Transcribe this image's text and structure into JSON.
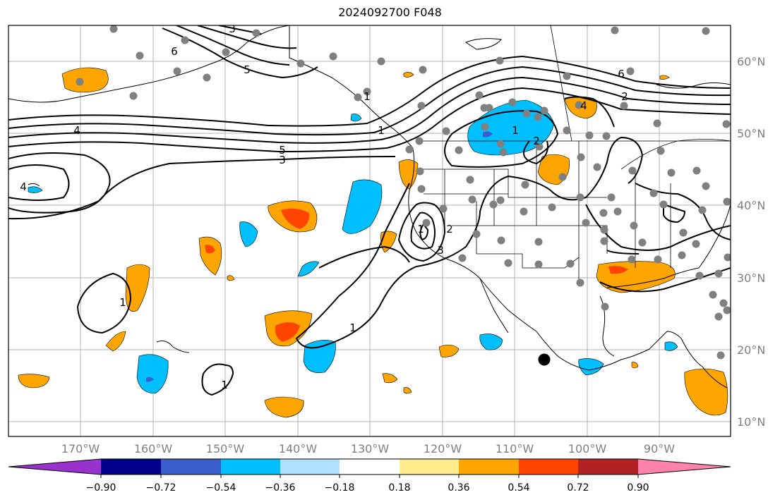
{
  "title": "2024092700 F048",
  "lat_labels": [
    "60°N",
    "50°N",
    "40°N",
    "30°N",
    "20°N",
    "10°N"
  ],
  "lon_labels": [
    "170°W",
    "160°W",
    "150°W",
    "140°W",
    "130°W",
    "120°W",
    "110°W",
    "100°W",
    "90°W"
  ],
  "colorbar": {
    "tick_labels": [
      "−0.90",
      "−0.72",
      "−0.54",
      "−0.36",
      "−0.18",
      "0.18",
      "0.36",
      "0.54",
      "0.72",
      "0.90"
    ],
    "colors": [
      "#9932CC",
      "#00008B",
      "#3A5FCD",
      "#00BFFF",
      "#B0E2FF",
      "#FFFFFF",
      "#FFEC8B",
      "#FFA500",
      "#FF4500",
      "#B22222",
      "#FF82AB"
    ]
  },
  "contour_labels": [
    "3",
    "6",
    "5",
    "4",
    "5",
    "3",
    "4",
    "3",
    "1",
    "2",
    "2",
    "1",
    "1",
    "1",
    "1",
    "6",
    "2",
    "4",
    "1",
    "1"
  ],
  "colors": {
    "land_outline": "#000000",
    "contour": "#000000",
    "station_dot": "#808080",
    "grid": "#b3b3b3"
  }
}
